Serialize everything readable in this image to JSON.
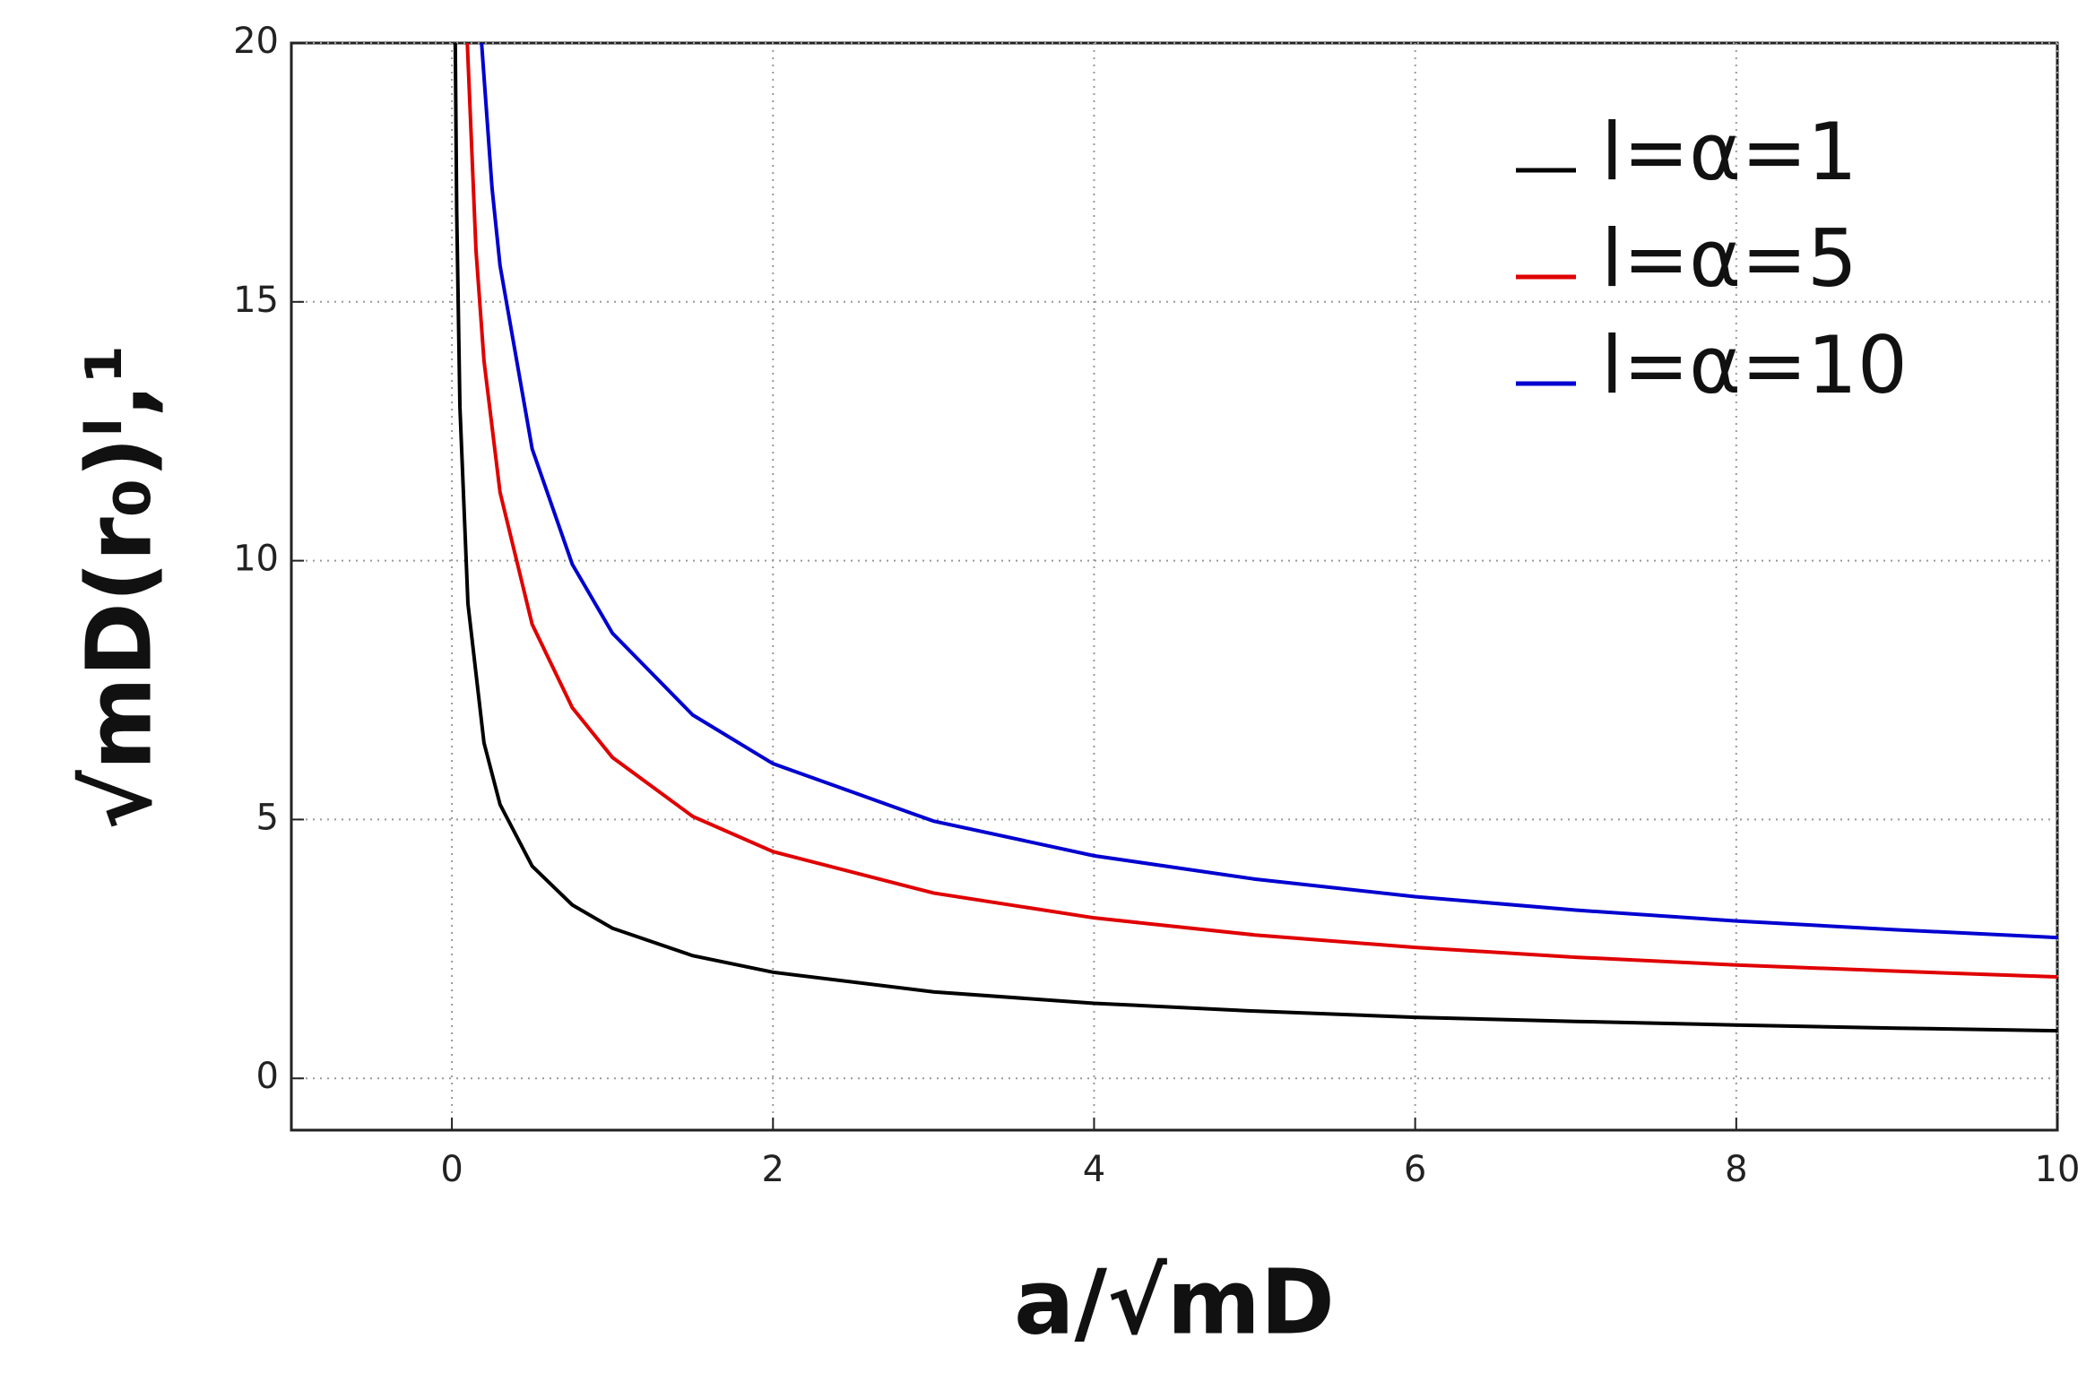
{
  "chart_data": {
    "type": "line",
    "x_label": "a/√mD",
    "y_label": "√mD(r₀)ˡ,¹",
    "xlim": [
      -1,
      10
    ],
    "ylim": [
      -1,
      20
    ],
    "xticks": [
      0,
      2,
      4,
      6,
      8,
      10
    ],
    "yticks": [
      0,
      5,
      10,
      15,
      20
    ],
    "grid": true,
    "legend": "upper right",
    "series": [
      {
        "name": "l=α=1",
        "color": "#000000",
        "x": [
          0.021,
          0.03,
          0.05,
          0.1,
          0.2,
          0.3,
          0.5,
          0.75,
          1,
          1.5,
          2,
          3,
          4,
          5,
          6,
          7,
          8,
          9,
          10
        ],
        "values": [
          20.0,
          16.74,
          12.97,
          9.17,
          6.48,
          5.29,
          4.1,
          3.35,
          2.9,
          2.37,
          2.05,
          1.67,
          1.45,
          1.3,
          1.18,
          1.1,
          1.03,
          0.97,
          0.92
        ]
      },
      {
        "name": "l=α=5",
        "color": "#e00000",
        "x": [
          0.096,
          0.15,
          0.2,
          0.3,
          0.5,
          0.75,
          1,
          1.5,
          2,
          3,
          4,
          5,
          6,
          7,
          8,
          9,
          10
        ],
        "values": [
          20.0,
          16.0,
          13.86,
          11.32,
          8.77,
          7.16,
          6.2,
          5.06,
          4.38,
          3.58,
          3.1,
          2.77,
          2.53,
          2.34,
          2.19,
          2.07,
          1.96
        ]
      },
      {
        "name": "l=α=10",
        "color": "#0000d0",
        "x": [
          0.185,
          0.25,
          0.3,
          0.5,
          0.75,
          1,
          1.5,
          2,
          3,
          4,
          5,
          6,
          7,
          8,
          9,
          10
        ],
        "values": [
          20.0,
          17.2,
          15.7,
          12.16,
          9.93,
          8.6,
          7.02,
          6.08,
          4.97,
          4.3,
          3.85,
          3.51,
          3.25,
          3.04,
          2.87,
          2.72
        ]
      }
    ]
  }
}
